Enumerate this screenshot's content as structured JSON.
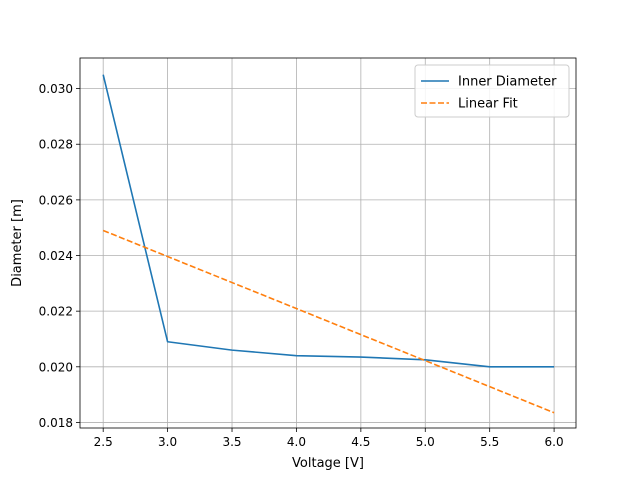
{
  "chart_data": {
    "type": "line",
    "title": "",
    "xlabel": "Voltage [V]",
    "ylabel": "Diameter [m]",
    "xlim": [
      2.32,
      6.17
    ],
    "ylim": [
      0.0178,
      0.0311
    ],
    "xticks": [
      2.5,
      3.0,
      3.5,
      4.0,
      4.5,
      5.0,
      5.5,
      6.0
    ],
    "xtick_labels": [
      "2.5",
      "3.0",
      "3.5",
      "4.0",
      "4.5",
      "5.0",
      "5.5",
      "6.0"
    ],
    "yticks": [
      0.018,
      0.02,
      0.022,
      0.024,
      0.026,
      0.028,
      0.03
    ],
    "ytick_labels": [
      "0.018",
      "0.020",
      "0.022",
      "0.024",
      "0.026",
      "0.028",
      "0.030"
    ],
    "grid": true,
    "legend_position": "top-right",
    "series": [
      {
        "name": "Inner Diameter",
        "color": "#1f77b4",
        "style": "solid",
        "x": [
          2.5,
          3.0,
          3.5,
          4.0,
          4.5,
          5.0,
          5.5,
          6.0
        ],
        "y": [
          0.0305,
          0.0209,
          0.0206,
          0.0204,
          0.02035,
          0.02025,
          0.02,
          0.02
        ]
      },
      {
        "name": "Linear Fit",
        "color": "#ff7f0e",
        "style": "dashed",
        "x": [
          2.5,
          6.0
        ],
        "y": [
          0.0249,
          0.01835
        ]
      }
    ]
  }
}
